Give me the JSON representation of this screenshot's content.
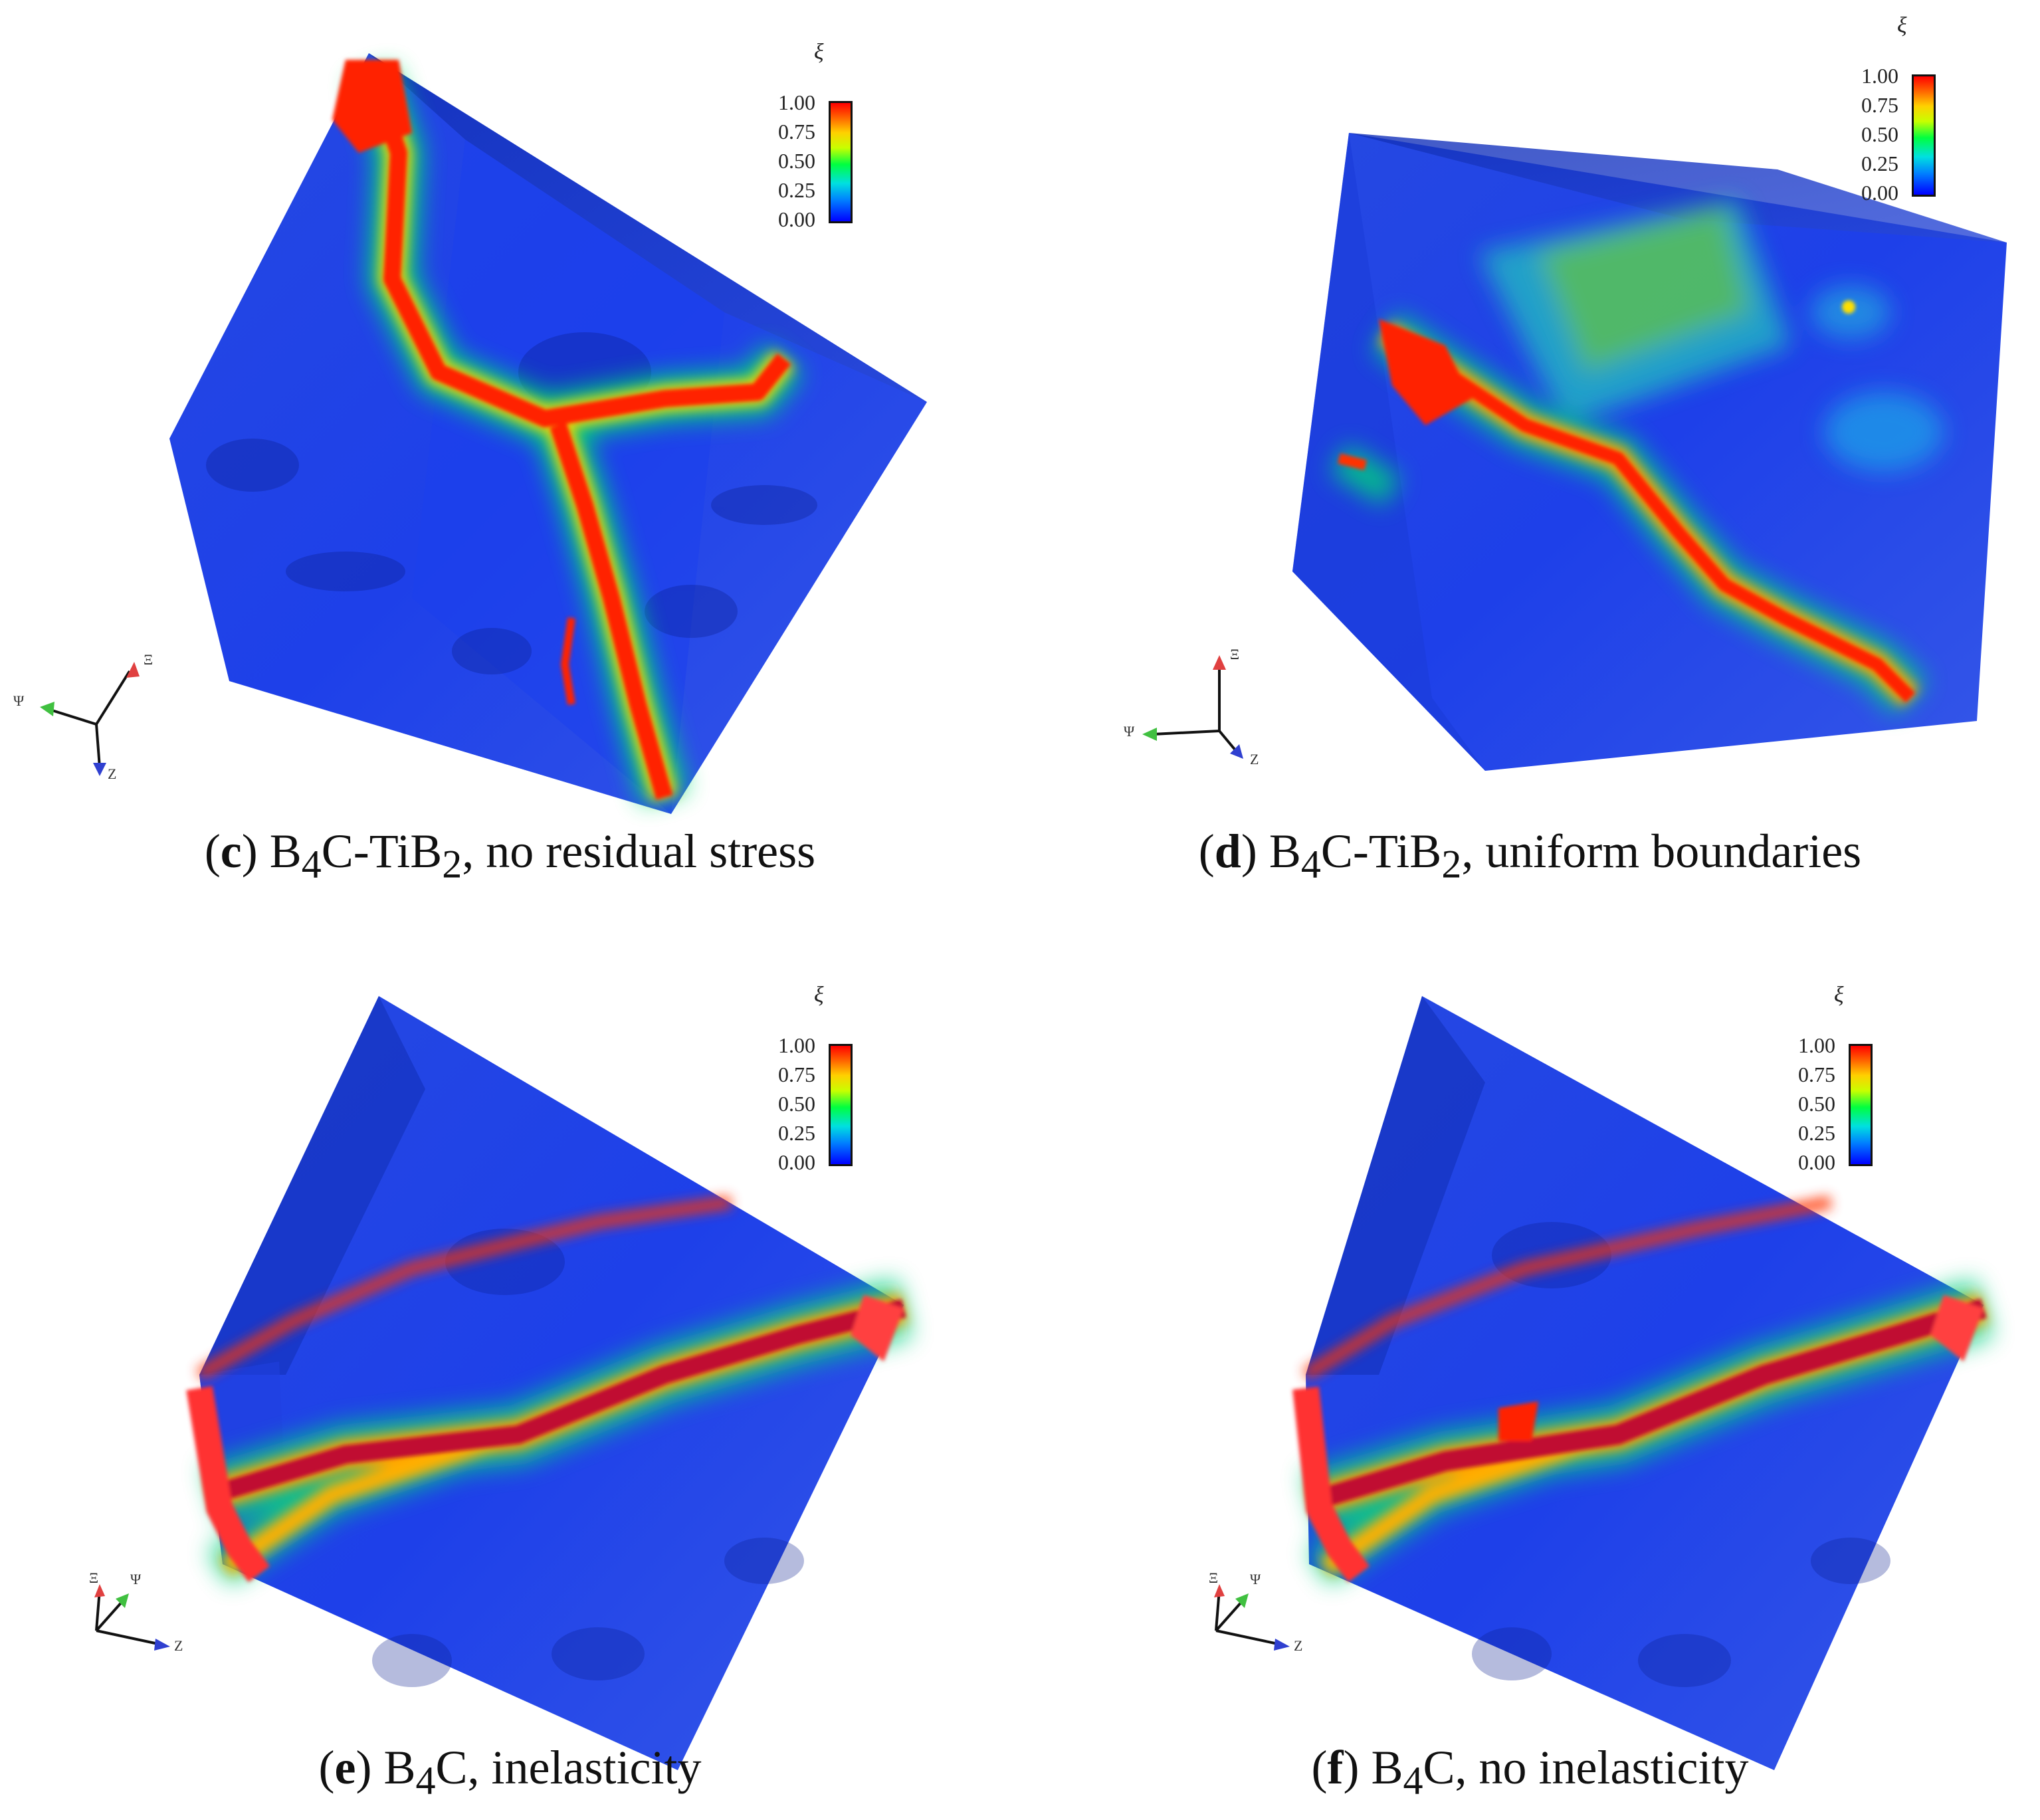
{
  "colorbar": {
    "title": "ξ",
    "ticks": [
      "1.00",
      "0.75",
      "0.50",
      "0.25",
      "0.00"
    ]
  },
  "panels": [
    {
      "id": "c",
      "caption_letter": "c",
      "caption_pre": "B",
      "caption_sub1": "4",
      "caption_mid": "C-TiB",
      "caption_sub2": "2",
      "caption_post": ", no residual stress",
      "axes": {
        "a": "Ψ",
        "b": "Ξ",
        "c": "Z"
      }
    },
    {
      "id": "d",
      "caption_letter": "d",
      "caption_pre": "B",
      "caption_sub1": "4",
      "caption_mid": "C-TiB",
      "caption_sub2": "2",
      "caption_post": ", uniform boundaries",
      "axes": {
        "a": "Ψ",
        "b": "Ξ",
        "c": "Z"
      }
    },
    {
      "id": "e",
      "caption_letter": "e",
      "caption_pre": "B",
      "caption_sub1": "4",
      "caption_mid": "C",
      "caption_sub2": "",
      "caption_post": ", inelasticity",
      "axes": {
        "a": "Ξ",
        "b": "Ψ",
        "c": "Z"
      }
    },
    {
      "id": "f",
      "caption_letter": "f",
      "caption_pre": "B",
      "caption_sub1": "4",
      "caption_mid": "C",
      "caption_sub2": "",
      "caption_post": ", no inelasticity",
      "axes": {
        "a": "Ξ",
        "b": "Ψ",
        "c": "Z"
      }
    }
  ]
}
